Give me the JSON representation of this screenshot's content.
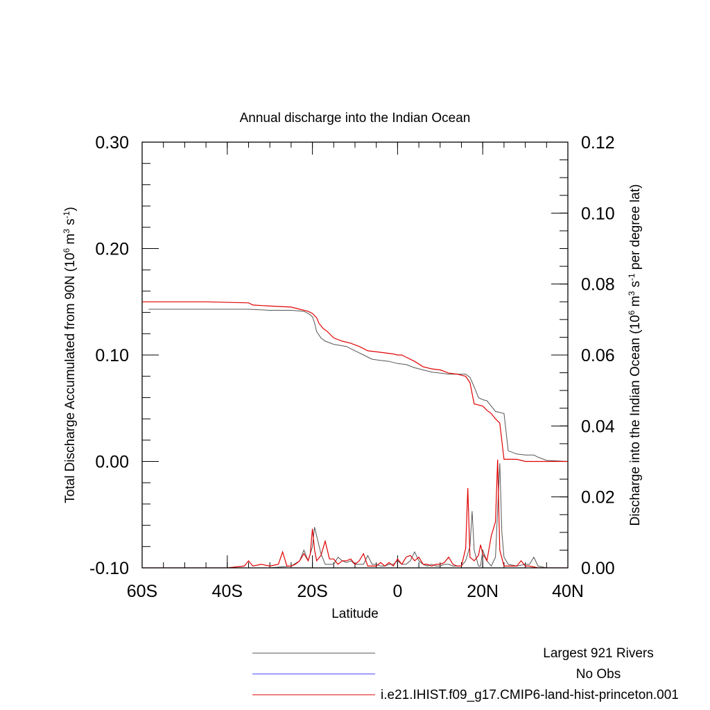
{
  "chart_data": {
    "type": "line",
    "title": "Annual discharge into the Indian Ocean",
    "xlabel": "Latitude",
    "ylabel_left": "Total Discharge Accumulated from 90N (10^6 m^3 s^-1)",
    "ylabel_right": "Discharge into the Indian Ocean (10^6 m^3 s^-1 per degree lat)",
    "xlim": [
      -60,
      40
    ],
    "ylim_left": [
      -0.1,
      0.3
    ],
    "ylim_right": [
      0,
      0.12
    ],
    "x_ticks": [
      {
        "value": -60,
        "label": "60S"
      },
      {
        "value": -40,
        "label": "40S"
      },
      {
        "value": -20,
        "label": "20S"
      },
      {
        "value": 0,
        "label": "0"
      },
      {
        "value": 20,
        "label": "20N"
      },
      {
        "value": 40,
        "label": "40N"
      }
    ],
    "y_ticks_left": [
      {
        "value": -0.1,
        "label": "-0.10"
      },
      {
        "value": 0.0,
        "label": "0.00"
      },
      {
        "value": 0.1,
        "label": "0.10"
      },
      {
        "value": 0.2,
        "label": "0.20"
      },
      {
        "value": 0.3,
        "label": "0.30"
      }
    ],
    "y_ticks_right": [
      {
        "value": 0.0,
        "label": "0.00"
      },
      {
        "value": 0.02,
        "label": "0.02"
      },
      {
        "value": 0.04,
        "label": "0.04"
      },
      {
        "value": 0.06,
        "label": "0.06"
      },
      {
        "value": 0.08,
        "label": "0.08"
      },
      {
        "value": 0.1,
        "label": "0.10"
      },
      {
        "value": 0.12,
        "label": "0.12"
      }
    ],
    "legend": [
      {
        "label": "Largest 921 Rivers",
        "color": "#555555"
      },
      {
        "label": "No Obs",
        "color": "#4040ff"
      },
      {
        "label": "i.e21.IHIST.f09_g17.CMIP6-land-hist-princeton.001",
        "color": "#e00000"
      }
    ],
    "series": [
      {
        "name": "Largest 921 Rivers",
        "kind": "accumulated",
        "axis": "left",
        "color": "#555555",
        "x": [
          -58.5,
          -35,
          -30,
          -25,
          -22,
          -21,
          -20,
          -19.5,
          -19,
          -18,
          -17,
          -15,
          -12,
          -10,
          -8,
          -6,
          -4,
          -2,
          0,
          2,
          4,
          6,
          8,
          10,
          12,
          14,
          16,
          17,
          18,
          19,
          20,
          21,
          22,
          23,
          24,
          25,
          26,
          28,
          30,
          32,
          33,
          35,
          40
        ],
        "y": [
          0.143,
          0.143,
          0.142,
          0.142,
          0.141,
          0.139,
          0.136,
          0.13,
          0.122,
          0.116,
          0.113,
          0.11,
          0.108,
          0.104,
          0.1,
          0.096,
          0.095,
          0.094,
          0.092,
          0.091,
          0.088,
          0.086,
          0.084,
          0.083,
          0.082,
          0.082,
          0.082,
          0.079,
          0.07,
          0.06,
          0.058,
          0.057,
          0.052,
          0.047,
          0.046,
          0.045,
          0.01,
          0.007,
          0.006,
          0.006,
          0.004,
          0.001,
          0.0
        ]
      },
      {
        "name": "i.e21.IHIST.f09_g17.CMIP6-land-hist-princeton.001",
        "kind": "accumulated",
        "axis": "left",
        "color": "#e00000",
        "x": [
          -60,
          -45,
          -35,
          -34,
          -30,
          -25,
          -23,
          -22,
          -21,
          -20,
          -19,
          -18.5,
          -17.5,
          -16.5,
          -15,
          -13,
          -11,
          -9,
          -7,
          -5,
          -3,
          -1,
          0,
          1,
          2,
          4,
          6,
          8,
          10,
          12,
          14,
          15,
          16,
          17,
          18,
          19,
          20,
          21,
          22,
          23,
          24,
          25,
          28,
          30,
          33,
          35,
          40
        ],
        "y": [
          0.15,
          0.15,
          0.149,
          0.147,
          0.146,
          0.145,
          0.143,
          0.142,
          0.141,
          0.139,
          0.135,
          0.13,
          0.125,
          0.122,
          0.116,
          0.113,
          0.111,
          0.108,
          0.104,
          0.103,
          0.102,
          0.101,
          0.1,
          0.1,
          0.098,
          0.094,
          0.089,
          0.087,
          0.086,
          0.083,
          0.082,
          0.081,
          0.08,
          0.074,
          0.054,
          0.053,
          0.052,
          0.048,
          0.045,
          0.04,
          0.036,
          0.002,
          0.002,
          0.0,
          0.0,
          0.0,
          0.0
        ]
      },
      {
        "name": "Largest 921 Rivers",
        "kind": "per-degree",
        "axis": "right",
        "color": "#555555",
        "x": [
          -60,
          -30,
          -25,
          -23,
          -22,
          -21,
          -20,
          -19.5,
          -19,
          -18,
          -17,
          -16,
          -15,
          -14,
          -13,
          -12,
          -11,
          -10,
          -9,
          -8,
          -7,
          -6,
          -5,
          -4,
          -3,
          -2,
          -1,
          0,
          1,
          2,
          3,
          4,
          5,
          6,
          7,
          8,
          9,
          10,
          11,
          12,
          13,
          14,
          15,
          16,
          17,
          17.5,
          18,
          19,
          19.5,
          20,
          21,
          22,
          23,
          24,
          24.5,
          25,
          26,
          28,
          30,
          31,
          32,
          33,
          35,
          40
        ],
        "y": [
          0,
          0,
          0.0005,
          0.002,
          0.005,
          0.002,
          0.006,
          0.0115,
          0.009,
          0.004,
          0.001,
          0.001,
          0.001,
          0.003,
          0.002,
          0.0015,
          0.002,
          0.001,
          0.001,
          0.001,
          0.0035,
          0.001,
          0.001,
          0.0005,
          0.0005,
          0.001,
          0.001,
          0.002,
          0.001,
          0.001,
          0.002,
          0.0045,
          0.002,
          0.001,
          0.0005,
          0.001,
          0.0005,
          0.0005,
          0.001,
          0.001,
          0.0005,
          0.0005,
          0.0005,
          0.002,
          0.006,
          0.016,
          0.005,
          0.0005,
          0.0005,
          0.005,
          0.002,
          0.0005,
          0.003,
          0.0295,
          0.01,
          0.003,
          0.001,
          0.0005,
          0.001,
          0.001,
          0.003,
          0.0005,
          0,
          0
        ]
      },
      {
        "name": "i.e21.IHIST.f09_g17.CMIP6-land-hist-princeton.001",
        "kind": "per-degree",
        "axis": "right",
        "color": "#e00000",
        "x": [
          -60,
          -40,
          -36,
          -35,
          -34,
          -32,
          -30,
          -28,
          -27,
          -26,
          -25,
          -24,
          -23,
          -22,
          -21,
          -20.5,
          -20,
          -19.5,
          -19,
          -18,
          -17,
          -16,
          -15,
          -14,
          -13,
          -12,
          -11,
          -10,
          -9,
          -8,
          -7,
          -6,
          -5,
          -4,
          -3,
          -2,
          -1,
          0,
          1,
          2,
          3,
          4,
          5,
          6,
          7,
          8,
          9,
          10,
          11,
          12,
          13,
          14,
          15,
          16,
          16.5,
          17,
          18,
          19,
          19.5,
          20,
          21,
          22,
          23,
          23.5,
          24,
          25,
          28,
          29,
          30,
          31,
          33,
          35,
          40
        ],
        "y": [
          0,
          0,
          0.0005,
          0.002,
          0.0005,
          0.001,
          0.0005,
          0.001,
          0.0045,
          0.0005,
          0.0005,
          0.001,
          0.002,
          0.004,
          0.002,
          0.004,
          0.011,
          0.005,
          0.002,
          0.0035,
          0.0075,
          0.0025,
          0.0025,
          0.001,
          0.002,
          0.002,
          0.0025,
          0.001,
          0.002,
          0.004,
          0.0005,
          0.0005,
          0.0005,
          0.0015,
          0.0005,
          0.0015,
          0.0005,
          0.0025,
          0.001,
          0.003,
          0.0035,
          0.002,
          0.003,
          0.001,
          0.001,
          0.0005,
          0.001,
          0.001,
          0.0015,
          0.003,
          0.001,
          0.0005,
          0.0005,
          0.0055,
          0.0225,
          0.003,
          0.002,
          0.0035,
          0.0065,
          0.004,
          0.002,
          0.009,
          0.013,
          0.0305,
          0.005,
          0.0005,
          0.0005,
          0.002,
          0.0005,
          0.0005,
          0,
          0,
          0
        ]
      }
    ]
  }
}
